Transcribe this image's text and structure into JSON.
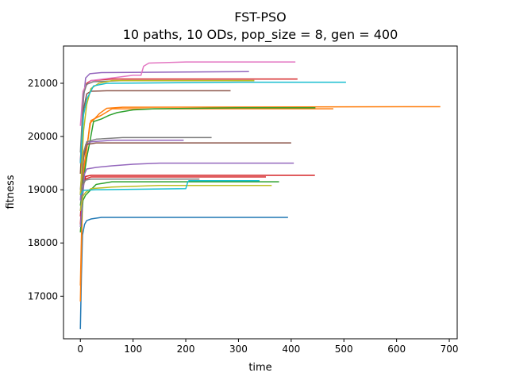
{
  "chart_data": {
    "type": "line",
    "title": "FST-PSO",
    "subtitle": "10 paths, 10 ODs, pop_size = 8, gen = 400",
    "xlabel": "time",
    "ylabel": "fitness",
    "xlim": [
      -32,
      715
    ],
    "ylim": [
      16200,
      21700
    ],
    "xticks": [
      0,
      100,
      200,
      300,
      400,
      500,
      600,
      700
    ],
    "yticks": [
      17000,
      18000,
      19000,
      20000,
      21000
    ],
    "xtick_labels": [
      "0",
      "100",
      "200",
      "300",
      "400",
      "500",
      "600",
      "700"
    ],
    "ytick_labels": [
      "17000",
      "18000",
      "19000",
      "20000",
      "21000"
    ],
    "grid": false,
    "series": [
      {
        "color": "#1f77b4",
        "points": [
          [
            0,
            16380
          ],
          [
            2,
            17400
          ],
          [
            4,
            18150
          ],
          [
            8,
            18350
          ],
          [
            12,
            18420
          ],
          [
            20,
            18450
          ],
          [
            40,
            18480
          ],
          [
            394,
            18480
          ]
        ]
      },
      {
        "color": "#ff7f0e",
        "points": [
          [
            0,
            17200
          ],
          [
            4,
            19000
          ],
          [
            10,
            19600
          ],
          [
            14,
            19900
          ],
          [
            18,
            20250
          ],
          [
            24,
            20300
          ],
          [
            36,
            20430
          ],
          [
            50,
            20530
          ],
          [
            80,
            20550
          ],
          [
            683,
            20560
          ]
        ]
      },
      {
        "color": "#ff7f0e",
        "points": [
          [
            0,
            16900
          ],
          [
            5,
            19300
          ],
          [
            12,
            19800
          ],
          [
            20,
            20300
          ],
          [
            40,
            20400
          ],
          [
            60,
            20520
          ],
          [
            480,
            20520
          ]
        ]
      },
      {
        "color": "#2ca02c",
        "points": [
          [
            0,
            18200
          ],
          [
            5,
            18800
          ],
          [
            10,
            18900
          ],
          [
            20,
            19000
          ],
          [
            30,
            19100
          ],
          [
            60,
            19150
          ],
          [
            150,
            19150
          ],
          [
            377,
            19150
          ]
        ]
      },
      {
        "color": "#2ca02c",
        "points": [
          [
            0,
            18700
          ],
          [
            6,
            19200
          ],
          [
            12,
            19600
          ],
          [
            18,
            19900
          ],
          [
            25,
            20280
          ],
          [
            40,
            20330
          ],
          [
            55,
            20400
          ],
          [
            70,
            20450
          ],
          [
            100,
            20500
          ],
          [
            140,
            20520
          ],
          [
            300,
            20540
          ],
          [
            446,
            20540
          ]
        ]
      },
      {
        "color": "#d62728",
        "points": [
          [
            0,
            18350
          ],
          [
            4,
            19000
          ],
          [
            10,
            19250
          ],
          [
            20,
            19270
          ],
          [
            445,
            19270
          ]
        ]
      },
      {
        "color": "#d62728",
        "points": [
          [
            0,
            18500
          ],
          [
            5,
            19100
          ],
          [
            10,
            19200
          ],
          [
            20,
            19240
          ],
          [
            352,
            19240
          ]
        ]
      },
      {
        "color": "#d62728",
        "points": [
          [
            0,
            19500
          ],
          [
            6,
            20800
          ],
          [
            12,
            21000
          ],
          [
            20,
            21050
          ],
          [
            60,
            21080
          ],
          [
            412,
            21080
          ]
        ]
      },
      {
        "color": "#9467bd",
        "points": [
          [
            0,
            18300
          ],
          [
            8,
            19300
          ],
          [
            12,
            19390
          ],
          [
            30,
            19420
          ],
          [
            60,
            19450
          ],
          [
            100,
            19480
          ],
          [
            150,
            19500
          ],
          [
            405,
            19500
          ]
        ]
      },
      {
        "color": "#9467bd",
        "points": [
          [
            0,
            19500
          ],
          [
            6,
            20700
          ],
          [
            10,
            21100
          ],
          [
            18,
            21180
          ],
          [
            40,
            21200
          ],
          [
            320,
            21220
          ]
        ]
      },
      {
        "color": "#9467bd",
        "points": [
          [
            0,
            18800
          ],
          [
            6,
            19600
          ],
          [
            10,
            19850
          ],
          [
            20,
            19900
          ],
          [
            60,
            19930
          ],
          [
            196,
            19930
          ]
        ]
      },
      {
        "color": "#8c564b",
        "points": [
          [
            0,
            18900
          ],
          [
            6,
            19600
          ],
          [
            12,
            19850
          ],
          [
            30,
            19880
          ],
          [
            60,
            19880
          ],
          [
            400,
            19880
          ]
        ]
      },
      {
        "color": "#8c564b",
        "points": [
          [
            0,
            19300
          ],
          [
            6,
            20500
          ],
          [
            12,
            20800
          ],
          [
            20,
            20850
          ],
          [
            50,
            20860
          ],
          [
            285,
            20860
          ]
        ]
      },
      {
        "color": "#e377c2",
        "points": [
          [
            0,
            20200
          ],
          [
            5,
            20850
          ],
          [
            10,
            20950
          ],
          [
            20,
            21050
          ],
          [
            60,
            21100
          ],
          [
            100,
            21150
          ],
          [
            115,
            21150
          ],
          [
            120,
            21320
          ],
          [
            130,
            21380
          ],
          [
            200,
            21400
          ],
          [
            408,
            21400
          ]
        ]
      },
      {
        "color": "#7f7f7f",
        "points": [
          [
            0,
            18600
          ],
          [
            5,
            19100
          ],
          [
            10,
            19180
          ],
          [
            20,
            19200
          ],
          [
            226,
            19200
          ]
        ]
      },
      {
        "color": "#7f7f7f",
        "points": [
          [
            0,
            19000
          ],
          [
            6,
            19700
          ],
          [
            12,
            19900
          ],
          [
            30,
            19950
          ],
          [
            80,
            19980
          ],
          [
            249,
            19980
          ]
        ]
      },
      {
        "color": "#7f7f7f",
        "points": [
          [
            0,
            19700
          ],
          [
            6,
            20800
          ],
          [
            12,
            20980
          ],
          [
            25,
            21030
          ],
          [
            80,
            21050
          ],
          [
            330,
            21050
          ]
        ]
      },
      {
        "color": "#bcbd22",
        "points": [
          [
            0,
            18600
          ],
          [
            5,
            18880
          ],
          [
            10,
            18950
          ],
          [
            20,
            19020
          ],
          [
            60,
            19050
          ],
          [
            150,
            19080
          ],
          [
            363,
            19080
          ]
        ]
      },
      {
        "color": "#bcbd22",
        "points": [
          [
            0,
            18900
          ],
          [
            6,
            20100
          ],
          [
            12,
            20600
          ],
          [
            20,
            20900
          ],
          [
            35,
            21000
          ],
          [
            60,
            21050
          ],
          [
            330,
            21050
          ]
        ]
      },
      {
        "color": "#17becf",
        "points": [
          [
            0,
            18900
          ],
          [
            6,
            18990
          ],
          [
            30,
            19000
          ],
          [
            200,
            19020
          ],
          [
            204,
            19150
          ],
          [
            206,
            19170
          ],
          [
            340,
            19170
          ]
        ]
      },
      {
        "color": "#17becf",
        "points": [
          [
            0,
            19500
          ],
          [
            6,
            20400
          ],
          [
            12,
            20700
          ],
          [
            25,
            20950
          ],
          [
            50,
            21000
          ],
          [
            300,
            21020
          ],
          [
            504,
            21020
          ]
        ]
      }
    ]
  }
}
